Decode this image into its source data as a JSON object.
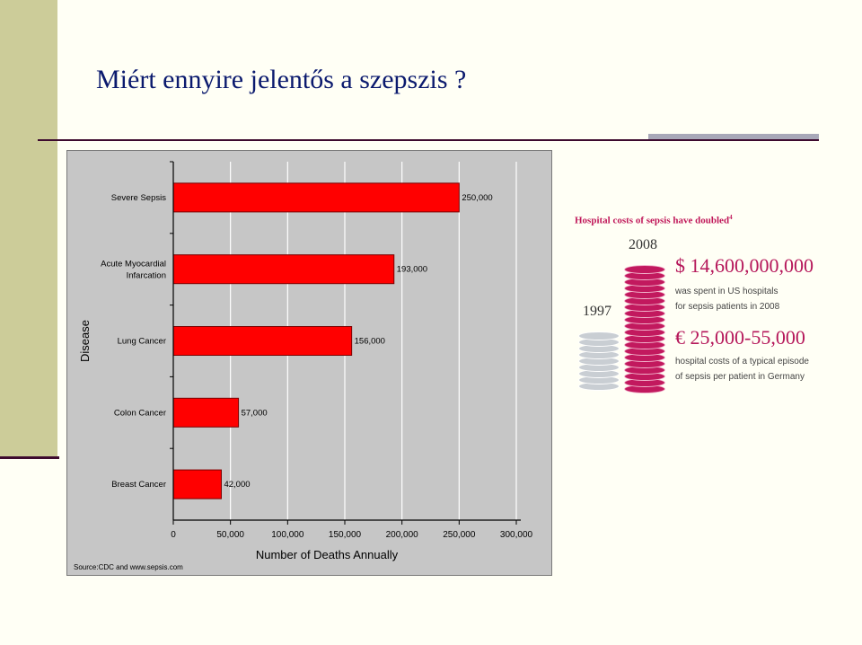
{
  "slide": {
    "title": "Miért ennyire jelentős a szepszis ?"
  },
  "chart_data": {
    "type": "bar",
    "orientation": "horizontal",
    "categories": [
      "Severe Sepsis",
      "Acute Myocardial\nInfarcation",
      "Lung Cancer",
      "Colon Cancer",
      "Breast Cancer"
    ],
    "values": [
      250000,
      193000,
      156000,
      57000,
      42000
    ],
    "value_labels": [
      "250,000",
      "193,000",
      "156,000",
      "57,000",
      "42,000"
    ],
    "xlabel": "Number of Deaths Annually",
    "ylabel": "Disease",
    "xlim": [
      0,
      300000
    ],
    "xticks": [
      0,
      50000,
      100000,
      150000,
      200000,
      250000,
      300000
    ],
    "xtick_labels": [
      "0",
      "50,000",
      "100,000",
      "150,000",
      "200,000",
      "250,000",
      "300,000"
    ],
    "grid": true,
    "bar_color": "#ff0000",
    "background_color": "#c6c6c6",
    "source": "Source:CDC and www.sepsis.com"
  },
  "infographic": {
    "title": "Hospital costs of sepsis have doubled",
    "title_ref": "4",
    "year_left": "1997",
    "year_right": "2008",
    "amount_us": "$ 14,600,000,000",
    "amount_us_text_1": "was spent in US hospitals",
    "amount_us_text_2": "for sepsis patients in 2008",
    "amount_de": "€ 25,000-55,000",
    "amount_de_text_1": "hospital costs of a typical episode",
    "amount_de_text_2": "of sepsis per patient in Germany",
    "colors": {
      "accent": "#b5175a",
      "coin_gray": "#c9ced3",
      "coin_pink": "#c2195e"
    }
  }
}
